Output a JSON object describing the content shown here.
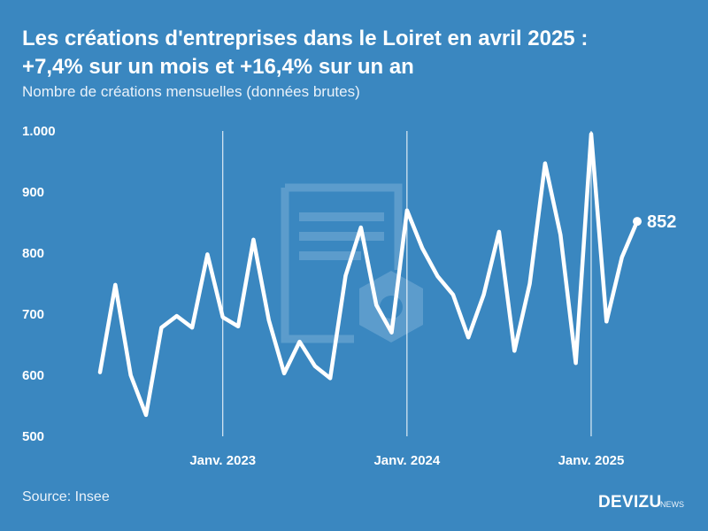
{
  "title_line1": "Les créations d'entreprises dans le Loiret en avril 2025 :",
  "title_line2": "+7,4% sur un mois et +16,4% sur un an",
  "subtitle": "Nombre de créations mensuelles (données brutes)",
  "source": "Source: Insee",
  "brand": "DEVIZU",
  "brand_sub": "NEWS",
  "colors": {
    "background": "#3a87c0",
    "line": "#ffffff",
    "watermark": "#7fb0d6"
  },
  "chart_data": {
    "type": "line",
    "title": "Les créations d'entreprises dans le Loiret en avril 2025 : +7,4% sur un mois et +16,4% sur un an",
    "ylabel": "Nombre de créations mensuelles (données brutes)",
    "ylim": [
      500,
      1000
    ],
    "yticks": [
      500,
      600,
      700,
      800,
      900,
      1000
    ],
    "ytick_labels": [
      "500",
      "600",
      "700",
      "800",
      "900",
      "1.000"
    ],
    "x_start_index": 0,
    "x_note": "index 0 = mai 2022, index 35 = avril 2025",
    "x_reference_lines": [
      {
        "index": 8,
        "label": "Janv. 2023"
      },
      {
        "index": 20,
        "label": "Janv. 2024"
      },
      {
        "index": 32,
        "label": "Janv. 2025"
      }
    ],
    "values": [
      605,
      748,
      600,
      535,
      678,
      697,
      678,
      798,
      695,
      680,
      822,
      690,
      603,
      655,
      615,
      595,
      763,
      842,
      715,
      670,
      870,
      808,
      762,
      732,
      662,
      732,
      835,
      640,
      750,
      947,
      830,
      620,
      995,
      688,
      793,
      852
    ],
    "end_label": "852",
    "grid": false,
    "legend": "none"
  }
}
